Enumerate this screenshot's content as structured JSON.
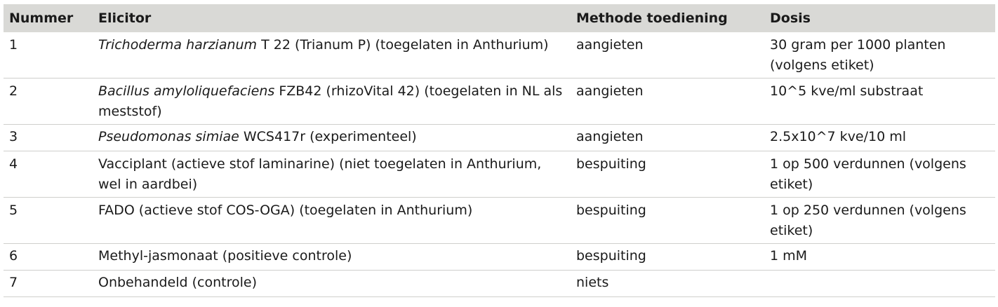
{
  "table": {
    "headers": [
      "Nummer",
      "Elicitor",
      "Methode toediening",
      "Dosis"
    ],
    "rows": [
      {
        "nummer": "1",
        "elicitor_italic": "Trichoderma harzianum",
        "elicitor_rest": " T 22 (Trianum P) (toegelaten in Anthurium)",
        "methode": "aangieten",
        "dosis": "30 gram per 1000 planten (volgens etiket)"
      },
      {
        "nummer": "2",
        "elicitor_italic": "Bacillus amyloliquefaciens",
        "elicitor_rest": " FZB42 (rhizoVital 42) (toegelaten in NL als meststof)",
        "methode": "aangieten",
        "dosis": "10^5 kve/ml substraat"
      },
      {
        "nummer": "3",
        "elicitor_italic": "Pseudomonas simiae",
        "elicitor_rest": " WCS417r (experimenteel)",
        "methode": "aangieten",
        "dosis": "2.5x10^7 kve/10 ml"
      },
      {
        "nummer": "4",
        "elicitor_italic": "",
        "elicitor_rest": "Vacciplant (actieve stof laminarine) (niet toegelaten in Anthurium, wel in aardbei)",
        "methode": "bespuiting",
        "dosis": "1 op 500 verdunnen (volgens etiket)"
      },
      {
        "nummer": "5",
        "elicitor_italic": "",
        "elicitor_rest": "FADO (actieve stof COS-OGA) (toegelaten in Anthurium)",
        "methode": "bespuiting",
        "dosis": "1 op 250 verdunnen (volgens etiket)"
      },
      {
        "nummer": "6",
        "elicitor_italic": "",
        "elicitor_rest": "Methyl-jasmonaat (positieve controle)",
        "methode": "bespuiting",
        "dosis": "1 mM"
      },
      {
        "nummer": "7",
        "elicitor_italic": "",
        "elicitor_rest": "Onbehandeld (controle)",
        "methode": "niets",
        "dosis": ""
      }
    ]
  },
  "colors": {
    "header_bg": "#d9d9d6",
    "row_border": "#cfcfcc",
    "text": "#1a1a1a"
  }
}
